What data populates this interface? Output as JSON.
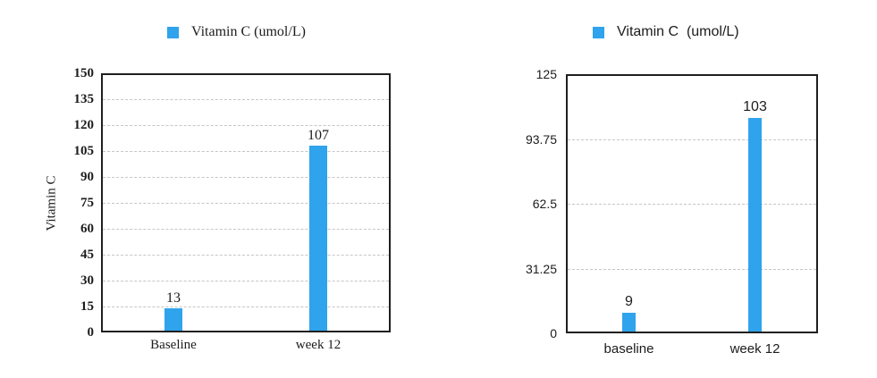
{
  "accent_color": "#2fa3ec",
  "text_color": "#1c1c1c",
  "chart_data": [
    {
      "type": "bar",
      "legend": "Vitamin C (umol/L)",
      "legend_position": "top",
      "title": "",
      "ylabel": "Vitamin C",
      "xlabel": "",
      "categories": [
        "Baseline",
        "week 12"
      ],
      "values": [
        13,
        107
      ],
      "value_labels": [
        "13",
        "107"
      ],
      "yticks": [
        0,
        15,
        30,
        45,
        60,
        75,
        90,
        105,
        120,
        135,
        150
      ],
      "ylim": [
        0,
        150
      ],
      "grid": true
    },
    {
      "type": "bar",
      "legend": "Vitamin C  (umol/L)",
      "legend_position": "top",
      "title": "",
      "ylabel": "",
      "xlabel": "",
      "categories": [
        "baseline",
        "week 12"
      ],
      "values": [
        9,
        103
      ],
      "value_labels": [
        "9",
        "103"
      ],
      "yticks": [
        0,
        31.25,
        62.5,
        93.75,
        125
      ],
      "ylim": [
        0,
        125
      ],
      "grid": true
    }
  ]
}
